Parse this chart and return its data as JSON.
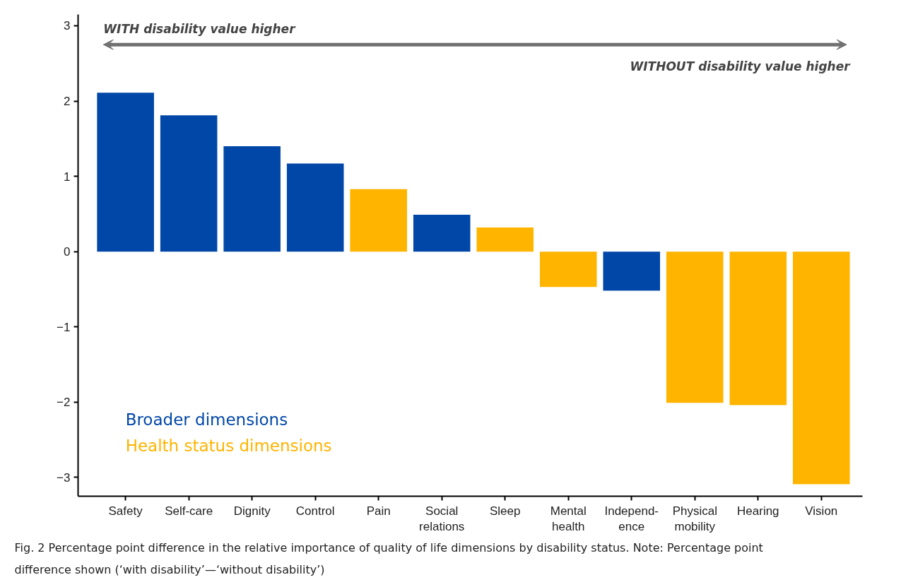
{
  "chart_data": {
    "type": "bar",
    "categories": [
      "Safety",
      "Self-care",
      "Dignity",
      "Control",
      "Pain",
      "Social\nrelations",
      "Sleep",
      "Mental\nhealth",
      "Independ-\nence",
      "Physical\nmobility",
      "Hearing",
      "Vision"
    ],
    "series": [
      {
        "name": "Broader dimensions",
        "color": "#0047a8",
        "values": [
          2.11,
          1.81,
          1.4,
          1.17,
          null,
          0.49,
          null,
          null,
          -0.52,
          null,
          null,
          null
        ]
      },
      {
        "name": "Health status dimensions",
        "color": "#ffb400",
        "values": [
          null,
          null,
          null,
          null,
          0.83,
          null,
          0.32,
          -0.47,
          null,
          -2.01,
          -2.04,
          -3.09
        ]
      }
    ],
    "ylim": [
      -3.25,
      3.15
    ],
    "yticks": [
      -3,
      -2,
      -1,
      0,
      1,
      2,
      3
    ],
    "grid": false,
    "legend": "bottom left",
    "annotations": [
      "WITH disability value higher",
      "WITHOUT disability value higher",
      "Fig. 2  Percentage point difference in the relative importance of quality of life dimensions by disability status. Note: Percentage point difference shown (‘with disability’—‘without disability’)"
    ]
  }
}
